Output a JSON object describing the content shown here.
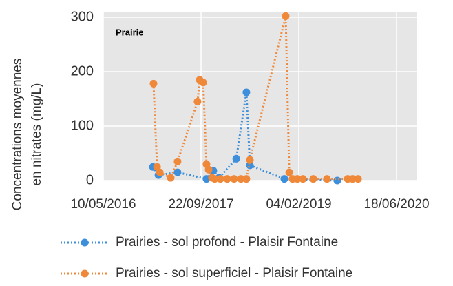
{
  "chart_data": {
    "type": "line",
    "annotation": "Prairie",
    "y_label": [
      "Concentrations moyennes",
      "en nitrates (mg/L)"
    ],
    "xlim": [
      "2016-05-10",
      "2020-09-28"
    ],
    "xticks": [
      {
        "value": "2016-05-10",
        "label": "10/05/2016"
      },
      {
        "value": "2017-09-22",
        "label": "22/09/2017"
      },
      {
        "value": "2019-02-04",
        "label": "04/02/2019"
      },
      {
        "value": "2020-06-18",
        "label": "18/06/2020"
      }
    ],
    "ylim": [
      0,
      300
    ],
    "yticks": [
      0,
      100,
      200,
      300
    ],
    "grid": true,
    "legend": "bottom",
    "series": [
      {
        "name": "Prairies - sol profond - Plaisir Fontaine",
        "color": "#3d8fdc",
        "x": [
          "2017-01-19",
          "2017-02-16",
          "2017-05-25",
          "2017-10-20",
          "2017-11-24",
          "2017-12-23",
          "2018-03-21",
          "2018-05-12",
          "2018-05-30",
          "2018-11-22",
          "2019-08-20"
        ],
        "values": [
          25,
          10,
          15,
          3,
          18,
          5,
          40,
          162,
          28,
          3,
          0
        ]
      },
      {
        "name": "Prairies - sol superficiel - Plaisir Fontaine",
        "color": "#f0883a",
        "x": [
          "2017-01-22",
          "2017-02-09",
          "2017-02-23",
          "2017-04-20",
          "2017-05-25",
          "2017-09-04",
          "2017-09-15",
          "2017-10-03",
          "2017-10-20",
          "2017-10-31",
          "2017-11-17",
          "2017-12-01",
          "2017-12-30",
          "2018-02-03",
          "2018-03-10",
          "2018-04-14",
          "2018-05-12",
          "2018-05-30",
          "2018-11-29",
          "2018-12-17",
          "2019-01-03",
          "2019-01-28",
          "2019-02-25",
          "2019-04-19",
          "2019-06-28",
          "2019-10-12",
          "2019-11-06",
          "2019-12-04"
        ],
        "values": [
          178,
          25,
          15,
          5,
          35,
          145,
          185,
          180,
          30,
          20,
          5,
          3,
          3,
          3,
          3,
          3,
          3,
          38,
          302,
          15,
          3,
          3,
          3,
          3,
          3,
          3,
          3,
          3
        ]
      }
    ]
  }
}
